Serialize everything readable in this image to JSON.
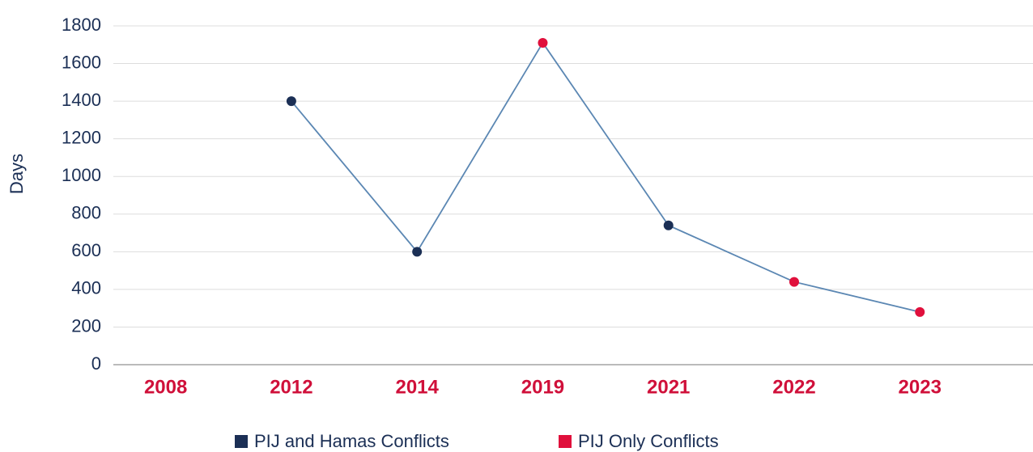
{
  "chart_data": {
    "type": "line",
    "y_label": "Days",
    "categories": [
      "2008",
      "2012",
      "2014",
      "2019",
      "2021",
      "2022",
      "2023"
    ],
    "series": [
      {
        "name": "PIJ and Hamas Conflicts",
        "color": "#1b2f55",
        "values": [
          null,
          1400,
          600,
          null,
          740,
          null,
          null
        ]
      },
      {
        "name": "PIJ Only Conflicts",
        "color": "#e0103c",
        "values": [
          null,
          null,
          null,
          1710,
          null,
          440,
          280
        ]
      }
    ],
    "line_color": "#5b87b3",
    "category_color": "#d0103a",
    "ylim": [
      0,
      1800
    ],
    "yticks": [
      0,
      200,
      400,
      600,
      800,
      1000,
      1200,
      1400,
      1600,
      1800
    ],
    "grid": true
  }
}
